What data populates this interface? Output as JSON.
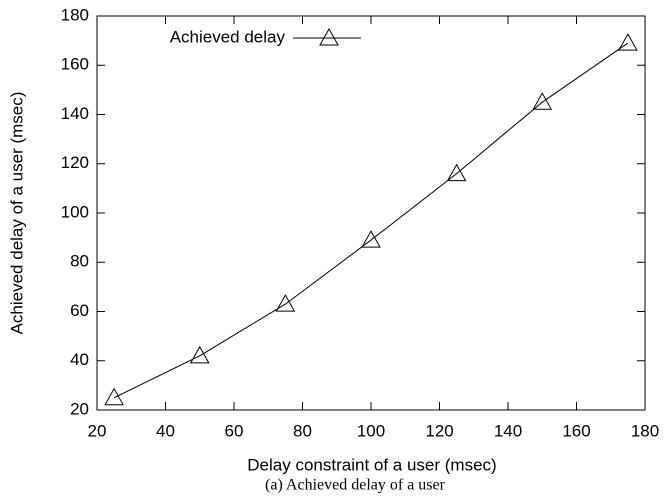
{
  "chart_data": {
    "type": "line",
    "caption": "(a) Achieved delay of a user",
    "x_label": "Delay constraint of a user (msec)",
    "y_label": "Achieved delay of a user (msec)",
    "x": [
      25,
      50,
      75,
      100,
      125,
      150,
      175
    ],
    "series": [
      {
        "name": "Achieved delay",
        "color": "#000000",
        "marker": "triangle",
        "values": [
          25,
          42,
          63,
          89,
          116,
          145,
          169
        ]
      }
    ],
    "xlim": [
      20,
      180
    ],
    "xticks": [
      20,
      40,
      60,
      80,
      100,
      120,
      140,
      160,
      180
    ],
    "ylim": [
      20,
      180
    ],
    "yticks": [
      20,
      40,
      60,
      80,
      100,
      120,
      140,
      160,
      180
    ],
    "grid": false,
    "legend": "top-left"
  }
}
